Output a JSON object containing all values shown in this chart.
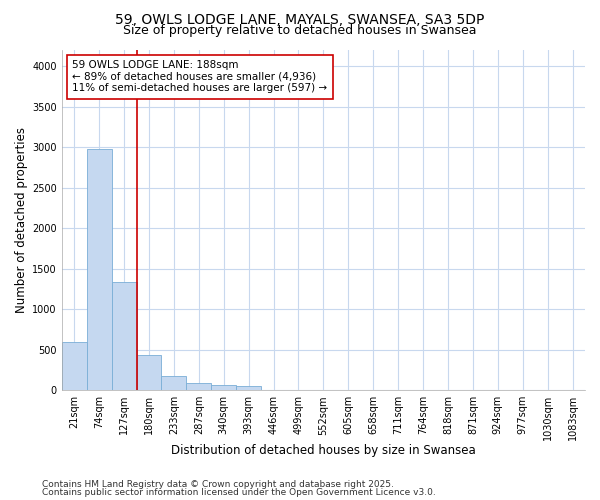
{
  "title": "59, OWLS LODGE LANE, MAYALS, SWANSEA, SA3 5DP",
  "subtitle": "Size of property relative to detached houses in Swansea",
  "xlabel": "Distribution of detached houses by size in Swansea",
  "ylabel": "Number of detached properties",
  "categories": [
    "21sqm",
    "74sqm",
    "127sqm",
    "180sqm",
    "233sqm",
    "287sqm",
    "340sqm",
    "393sqm",
    "446sqm",
    "499sqm",
    "552sqm",
    "605sqm",
    "658sqm",
    "711sqm",
    "764sqm",
    "818sqm",
    "871sqm",
    "924sqm",
    "977sqm",
    "1030sqm",
    "1083sqm"
  ],
  "values": [
    600,
    2980,
    1330,
    430,
    170,
    95,
    60,
    50,
    0,
    0,
    0,
    0,
    0,
    0,
    0,
    0,
    0,
    0,
    0,
    0,
    0
  ],
  "bar_color": "#c5d8f0",
  "bar_edge_color": "#7aaed6",
  "vline_x_index": 3,
  "vline_color": "#cc0000",
  "annotation_text": "59 OWLS LODGE LANE: 188sqm\n← 89% of detached houses are smaller (4,936)\n11% of semi-detached houses are larger (597) →",
  "ylim": [
    0,
    4200
  ],
  "yticks": [
    0,
    500,
    1000,
    1500,
    2000,
    2500,
    3000,
    3500,
    4000
  ],
  "fig_background": "#ffffff",
  "plot_background": "#ffffff",
  "grid_color": "#c8d8ee",
  "footer_line1": "Contains HM Land Registry data © Crown copyright and database right 2025.",
  "footer_line2": "Contains public sector information licensed under the Open Government Licence v3.0.",
  "title_fontsize": 10,
  "subtitle_fontsize": 9,
  "axis_label_fontsize": 8.5,
  "tick_fontsize": 7,
  "annotation_fontsize": 7.5,
  "footer_fontsize": 6.5
}
